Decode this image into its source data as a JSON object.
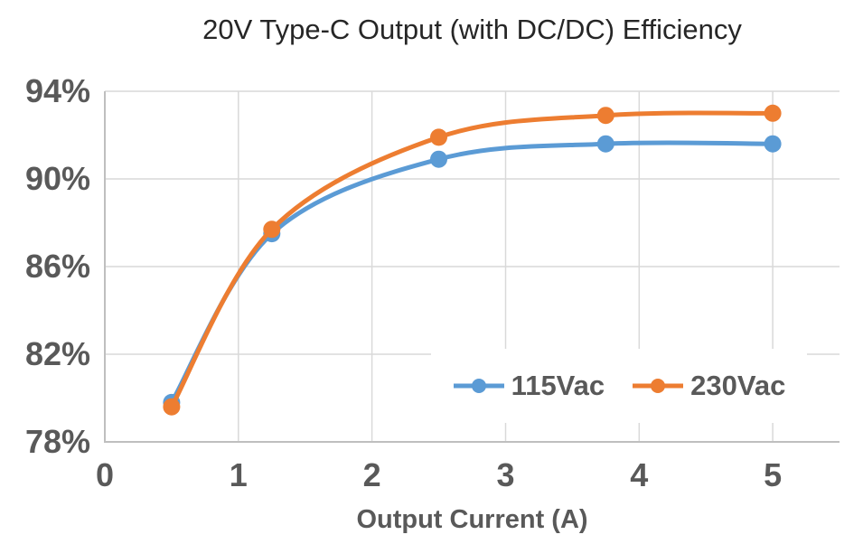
{
  "chart_data": {
    "type": "line",
    "title": "20V Type-C Output (with DC/DC) Efficiency",
    "xlabel": "Output Current (A)",
    "ylabel": "",
    "x": [
      0.5,
      1.25,
      2.5,
      3.75,
      5
    ],
    "series": [
      {
        "name": "115Vac",
        "color": "#5B9BD5",
        "values": [
          79.8,
          87.5,
          90.9,
          91.6,
          91.6
        ]
      },
      {
        "name": "230Vac",
        "color": "#ED7D31",
        "values": [
          79.6,
          87.7,
          91.9,
          92.9,
          93.0
        ]
      }
    ],
    "xlim": [
      0,
      5.5
    ],
    "ylim": [
      78,
      94
    ],
    "x_ticks": [
      0,
      1,
      2,
      3,
      4,
      5
    ],
    "x_tick_labels": [
      "0",
      "1",
      "2",
      "3",
      "4",
      "5"
    ],
    "y_ticks": [
      94,
      90,
      86,
      82,
      78
    ],
    "y_tick_labels": [
      "94%",
      "90%",
      "86%",
      "82%",
      "78%"
    ],
    "grid": true,
    "smooth_lines": true,
    "markers": "circle",
    "legend_position": "inside-bottom-right"
  },
  "style": {
    "background": "#FFFFFF",
    "gridline_color": "#D9D9D9",
    "axis_line_color": "#BFBFBF",
    "tick_label_color": "#595959",
    "title_color": "#262626"
  }
}
